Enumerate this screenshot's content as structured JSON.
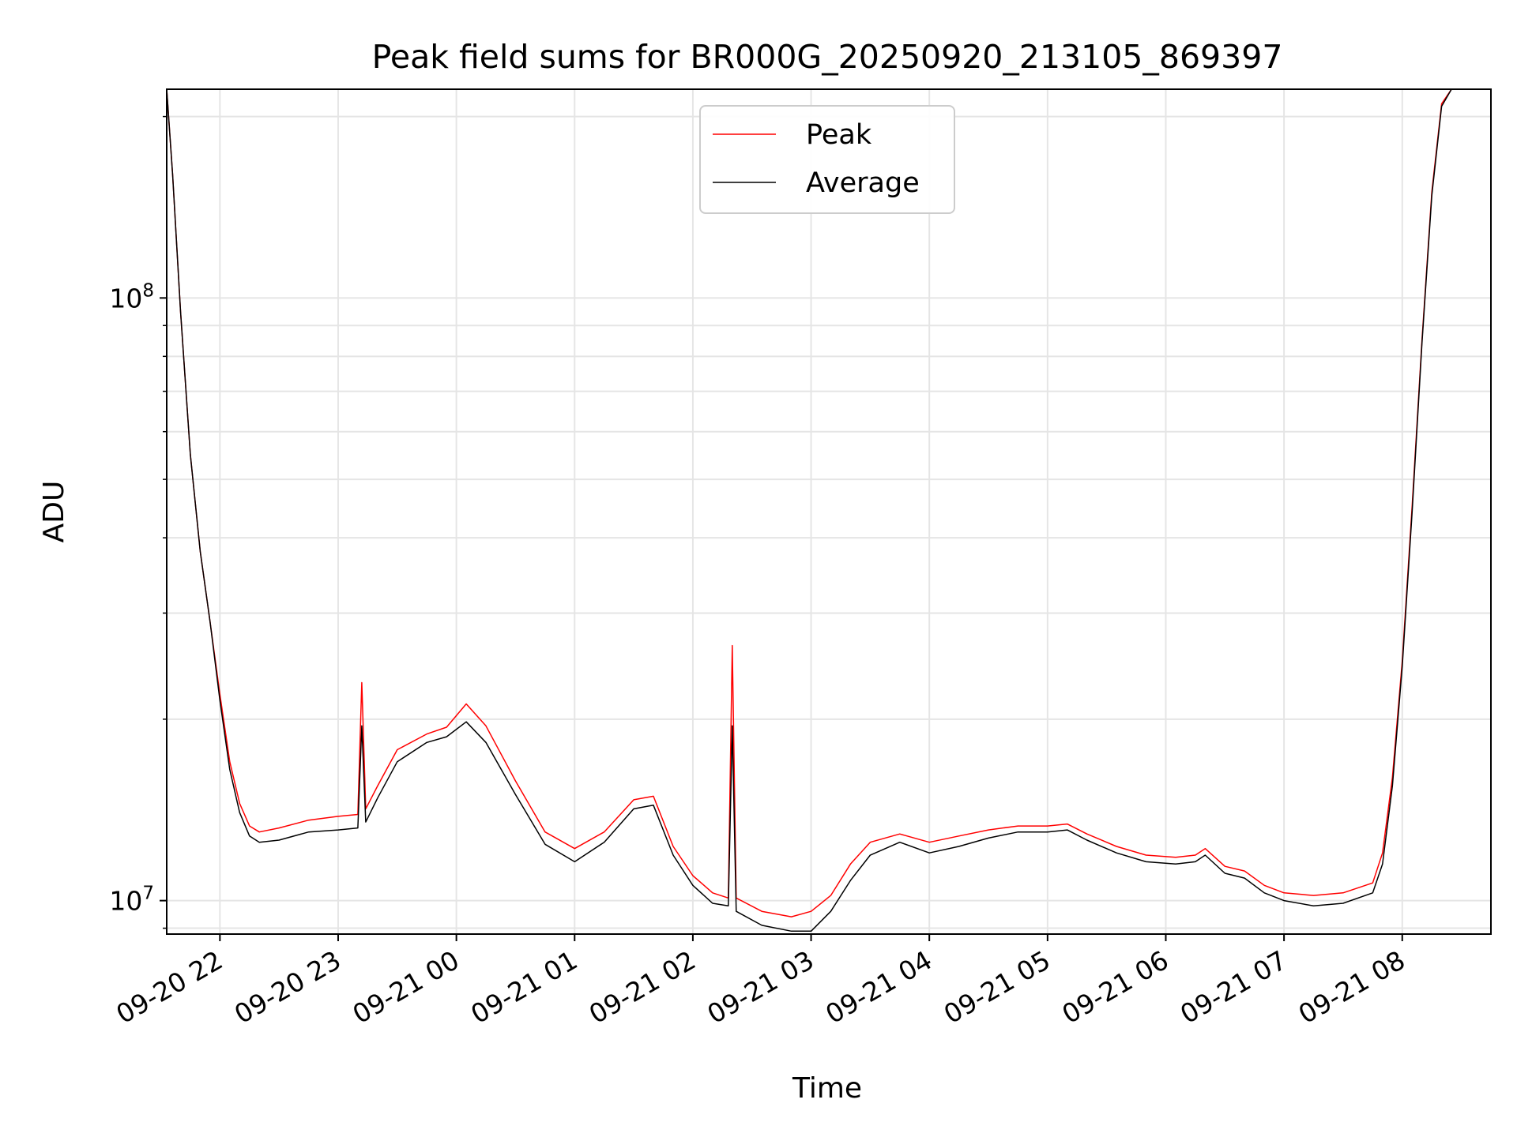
{
  "chart_data": {
    "type": "line",
    "title": "Peak field sums for BR000G_20250920_213105_869397",
    "xlabel": "Time",
    "ylabel": "ADU",
    "y_scale": "log",
    "ylim": [
      8800000,
      222000000
    ],
    "xlim": [
      "2025-09-20 21:33",
      "2025-09-21 08:45"
    ],
    "x_ticks": [
      {
        "t": "2025-09-20 22:00",
        "label": "09-20 22"
      },
      {
        "t": "2025-09-20 23:00",
        "label": "09-20 23"
      },
      {
        "t": "2025-09-21 00:00",
        "label": "09-21 00"
      },
      {
        "t": "2025-09-21 01:00",
        "label": "09-21 01"
      },
      {
        "t": "2025-09-21 02:00",
        "label": "09-21 02"
      },
      {
        "t": "2025-09-21 03:00",
        "label": "09-21 03"
      },
      {
        "t": "2025-09-21 04:00",
        "label": "09-21 04"
      },
      {
        "t": "2025-09-21 05:00",
        "label": "09-21 05"
      },
      {
        "t": "2025-09-21 06:00",
        "label": "09-21 06"
      },
      {
        "t": "2025-09-21 07:00",
        "label": "09-21 07"
      },
      {
        "t": "2025-09-21 08:00",
        "label": "09-21 08"
      }
    ],
    "y_ticks": [
      {
        "value": 10000000,
        "base": "10",
        "exp": "7"
      },
      {
        "value": 100000000,
        "base": "10",
        "exp": "8"
      }
    ],
    "grid": true,
    "legend_position": "top-center",
    "series": [
      {
        "name": "Peak",
        "color": "#ff0000",
        "points": [
          [
            "2025-09-20 21:33",
            222000000
          ],
          [
            "2025-09-20 21:36",
            160000000
          ],
          [
            "2025-09-20 21:40",
            95000000
          ],
          [
            "2025-09-20 21:45",
            55000000
          ],
          [
            "2025-09-20 21:50",
            38000000
          ],
          [
            "2025-09-20 21:55",
            29000000
          ],
          [
            "2025-09-20 22:00",
            22000000
          ],
          [
            "2025-09-20 22:05",
            17000000
          ],
          [
            "2025-09-20 22:10",
            14500000
          ],
          [
            "2025-09-20 22:15",
            13300000
          ],
          [
            "2025-09-20 22:20",
            13000000
          ],
          [
            "2025-09-20 22:30",
            13200000
          ],
          [
            "2025-09-20 22:45",
            13600000
          ],
          [
            "2025-09-20 23:00",
            13800000
          ],
          [
            "2025-09-20 23:10",
            13900000
          ],
          [
            "2025-09-20 23:12",
            23000000
          ],
          [
            "2025-09-20 23:14",
            14200000
          ],
          [
            "2025-09-20 23:20",
            15500000
          ],
          [
            "2025-09-20 23:30",
            17800000
          ],
          [
            "2025-09-20 23:45",
            18900000
          ],
          [
            "2025-09-20 23:55",
            19400000
          ],
          [
            "2025-09-21 00:05",
            21200000
          ],
          [
            "2025-09-21 00:15",
            19500000
          ],
          [
            "2025-09-21 00:30",
            15800000
          ],
          [
            "2025-09-21 00:45",
            13000000
          ],
          [
            "2025-09-21 01:00",
            12200000
          ],
          [
            "2025-09-21 01:15",
            13000000
          ],
          [
            "2025-09-21 01:30",
            14700000
          ],
          [
            "2025-09-21 01:40",
            14900000
          ],
          [
            "2025-09-21 01:50",
            12300000
          ],
          [
            "2025-09-21 02:00",
            11000000
          ],
          [
            "2025-09-21 02:10",
            10300000
          ],
          [
            "2025-09-21 02:18",
            10100000
          ],
          [
            "2025-09-21 02:20",
            26500000
          ],
          [
            "2025-09-21 02:22",
            10100000
          ],
          [
            "2025-09-21 02:35",
            9600000
          ],
          [
            "2025-09-21 02:50",
            9400000
          ],
          [
            "2025-09-21 03:00",
            9600000
          ],
          [
            "2025-09-21 03:10",
            10200000
          ],
          [
            "2025-09-21 03:20",
            11500000
          ],
          [
            "2025-09-21 03:30",
            12500000
          ],
          [
            "2025-09-21 03:45",
            12900000
          ],
          [
            "2025-09-21 04:00",
            12500000
          ],
          [
            "2025-09-21 04:15",
            12800000
          ],
          [
            "2025-09-21 04:30",
            13100000
          ],
          [
            "2025-09-21 04:45",
            13300000
          ],
          [
            "2025-09-21 05:00",
            13300000
          ],
          [
            "2025-09-21 05:10",
            13400000
          ],
          [
            "2025-09-21 05:20",
            12900000
          ],
          [
            "2025-09-21 05:35",
            12300000
          ],
          [
            "2025-09-21 05:50",
            11900000
          ],
          [
            "2025-09-21 06:05",
            11800000
          ],
          [
            "2025-09-21 06:15",
            11900000
          ],
          [
            "2025-09-21 06:20",
            12200000
          ],
          [
            "2025-09-21 06:30",
            11400000
          ],
          [
            "2025-09-21 06:40",
            11200000
          ],
          [
            "2025-09-21 06:50",
            10600000
          ],
          [
            "2025-09-21 07:00",
            10300000
          ],
          [
            "2025-09-21 07:15",
            10200000
          ],
          [
            "2025-09-21 07:30",
            10300000
          ],
          [
            "2025-09-21 07:45",
            10700000
          ],
          [
            "2025-09-21 07:50",
            12000000
          ],
          [
            "2025-09-21 07:55",
            16000000
          ],
          [
            "2025-09-21 08:00",
            25000000
          ],
          [
            "2025-09-21 08:05",
            45000000
          ],
          [
            "2025-09-21 08:10",
            85000000
          ],
          [
            "2025-09-21 08:15",
            150000000
          ],
          [
            "2025-09-21 08:20",
            210000000
          ],
          [
            "2025-09-21 08:25",
            222000000
          ],
          [
            "2025-09-21 08:45",
            222000000
          ]
        ]
      },
      {
        "name": "Average",
        "color": "#000000",
        "points": [
          [
            "2025-09-20 21:33",
            222000000
          ],
          [
            "2025-09-20 21:36",
            160000000
          ],
          [
            "2025-09-20 21:40",
            95000000
          ],
          [
            "2025-09-20 21:45",
            55000000
          ],
          [
            "2025-09-20 21:50",
            38000000
          ],
          [
            "2025-09-20 21:55",
            29000000
          ],
          [
            "2025-09-20 22:00",
            21500000
          ],
          [
            "2025-09-20 22:05",
            16500000
          ],
          [
            "2025-09-20 22:10",
            14000000
          ],
          [
            "2025-09-20 22:15",
            12800000
          ],
          [
            "2025-09-20 22:20",
            12500000
          ],
          [
            "2025-09-20 22:30",
            12600000
          ],
          [
            "2025-09-20 22:45",
            13000000
          ],
          [
            "2025-09-20 23:00",
            13100000
          ],
          [
            "2025-09-20 23:10",
            13200000
          ],
          [
            "2025-09-20 23:12",
            19500000
          ],
          [
            "2025-09-20 23:14",
            13500000
          ],
          [
            "2025-09-20 23:20",
            14800000
          ],
          [
            "2025-09-20 23:30",
            17000000
          ],
          [
            "2025-09-20 23:45",
            18300000
          ],
          [
            "2025-09-20 23:55",
            18700000
          ],
          [
            "2025-09-21 00:05",
            19800000
          ],
          [
            "2025-09-21 00:15",
            18300000
          ],
          [
            "2025-09-21 00:30",
            15000000
          ],
          [
            "2025-09-21 00:45",
            12400000
          ],
          [
            "2025-09-21 01:00",
            11600000
          ],
          [
            "2025-09-21 01:15",
            12500000
          ],
          [
            "2025-09-21 01:30",
            14200000
          ],
          [
            "2025-09-21 01:40",
            14400000
          ],
          [
            "2025-09-21 01:50",
            11900000
          ],
          [
            "2025-09-21 02:00",
            10600000
          ],
          [
            "2025-09-21 02:10",
            9900000
          ],
          [
            "2025-09-21 02:18",
            9800000
          ],
          [
            "2025-09-21 02:20",
            19500000
          ],
          [
            "2025-09-21 02:22",
            9600000
          ],
          [
            "2025-09-21 02:35",
            9100000
          ],
          [
            "2025-09-21 02:50",
            8900000
          ],
          [
            "2025-09-21 03:00",
            8900000
          ],
          [
            "2025-09-21 03:10",
            9600000
          ],
          [
            "2025-09-21 03:20",
            10800000
          ],
          [
            "2025-09-21 03:30",
            11900000
          ],
          [
            "2025-09-21 03:45",
            12500000
          ],
          [
            "2025-09-21 04:00",
            12000000
          ],
          [
            "2025-09-21 04:15",
            12300000
          ],
          [
            "2025-09-21 04:30",
            12700000
          ],
          [
            "2025-09-21 04:45",
            13000000
          ],
          [
            "2025-09-21 05:00",
            13000000
          ],
          [
            "2025-09-21 05:10",
            13100000
          ],
          [
            "2025-09-21 05:20",
            12600000
          ],
          [
            "2025-09-21 05:35",
            12000000
          ],
          [
            "2025-09-21 05:50",
            11600000
          ],
          [
            "2025-09-21 06:05",
            11500000
          ],
          [
            "2025-09-21 06:15",
            11600000
          ],
          [
            "2025-09-21 06:20",
            11900000
          ],
          [
            "2025-09-21 06:30",
            11100000
          ],
          [
            "2025-09-21 06:40",
            10900000
          ],
          [
            "2025-09-21 06:50",
            10300000
          ],
          [
            "2025-09-21 07:00",
            10000000
          ],
          [
            "2025-09-21 07:15",
            9800000
          ],
          [
            "2025-09-21 07:30",
            9900000
          ],
          [
            "2025-09-21 07:45",
            10300000
          ],
          [
            "2025-09-21 07:50",
            11500000
          ],
          [
            "2025-09-21 07:55",
            15500000
          ],
          [
            "2025-09-21 08:00",
            24500000
          ],
          [
            "2025-09-21 08:05",
            44000000
          ],
          [
            "2025-09-21 08:10",
            84000000
          ],
          [
            "2025-09-21 08:15",
            148000000
          ],
          [
            "2025-09-21 08:20",
            208000000
          ],
          [
            "2025-09-21 08:25",
            222000000
          ],
          [
            "2025-09-21 08:45",
            222000000
          ]
        ]
      }
    ]
  }
}
